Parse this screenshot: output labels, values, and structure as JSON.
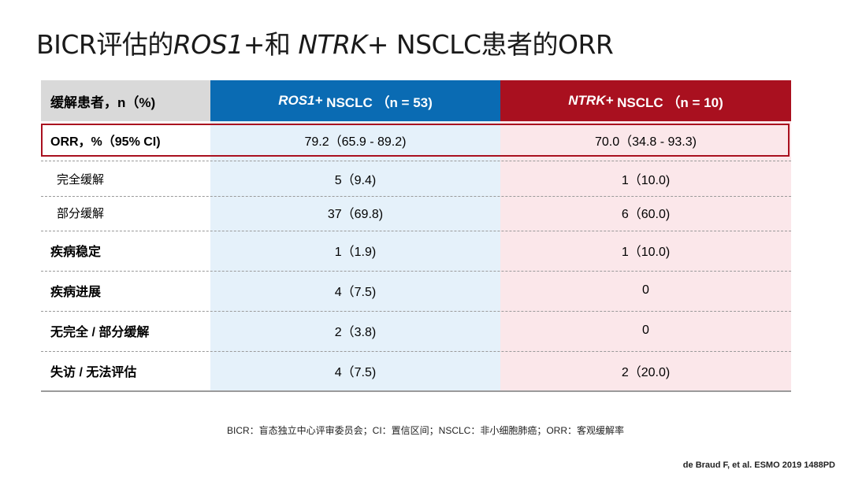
{
  "title": {
    "prefix": "BICR评估的",
    "ros1": "ROS1+",
    "middle": "和",
    "ntrk": "NTRK+",
    "suffix": "NSCLC患者的ORR"
  },
  "table": {
    "header": {
      "label": "缓解患者，n（%)",
      "col1_italic": "ROS1+",
      "col1_rest": "NSCLC （n = 53)",
      "col2_italic": "NTRK+",
      "col2_rest": "NSCLC （n = 10)"
    },
    "rows": [
      {
        "label": "ORR，%（95% CI)",
        "v1": "79.2（65.9 - 89.2)",
        "v2": "70.0（34.8 - 93.3)"
      },
      {
        "label": "完全缓解",
        "v1": "5（9.4)",
        "v2": "1（10.0)"
      },
      {
        "label": "部分缓解",
        "v1": "37（69.8)",
        "v2": "6（60.0)"
      },
      {
        "label": "疾病稳定",
        "v1": "1（1.9)",
        "v2": "1（10.0)"
      },
      {
        "label": "疾病进展",
        "v1": "4（7.5)",
        "v2": "0"
      },
      {
        "label": "无完全 / 部分缓解",
        "v1": "2（3.8)",
        "v2": "0"
      },
      {
        "label": "失访 / 无法评估",
        "v1": "4（7.5)",
        "v2": "2（20.0)"
      }
    ]
  },
  "footnote": "BICR：盲态独立中心评审委员会；CI：置信区间；NSCLC：非小细胞肺癌；ORR：客观缓解率",
  "reference": "de Braud F, et al. ESMO 2019 1488PD",
  "colors": {
    "ros1_header": "#0a6bb3",
    "ntrk_header": "#a9101f",
    "ros1_bg": "#e5f1fa",
    "ntrk_bg": "#fbe7ea",
    "label_header": "#d9d9d9"
  }
}
